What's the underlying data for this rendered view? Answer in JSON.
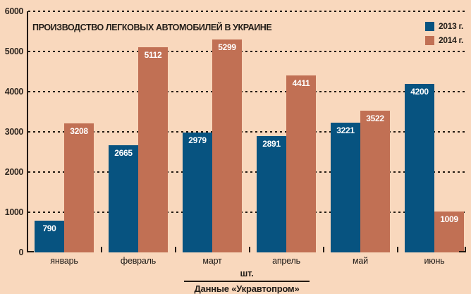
{
  "colors": {
    "background": "#f9d8bd",
    "series_2013": "#075380",
    "series_2014": "#c17054",
    "axis": "#241a12",
    "text": "#221d18",
    "value_label": "#ffffff"
  },
  "chart_data": {
    "type": "bar",
    "title": "ПРОИЗВОДСТВО ЛЕГКОВЫХ АВТОМОБИЛЕЙ В УКРАИНЕ",
    "categories": [
      "январь",
      "февраль",
      "март",
      "апрель",
      "май",
      "июнь"
    ],
    "series": [
      {
        "name": "2013 г.",
        "color_key": "series_2013",
        "values": [
          790,
          2665,
          2979,
          2891,
          3221,
          4200
        ]
      },
      {
        "name": "2014 г.",
        "color_key": "series_2014",
        "values": [
          3208,
          5112,
          5299,
          4411,
          3522,
          1009
        ]
      }
    ],
    "ylim": [
      0,
      6000
    ],
    "yticks": [
      0,
      1000,
      2000,
      3000,
      4000,
      5000,
      6000
    ],
    "grid": "dashed horizontal",
    "legend_position": "top-right",
    "value_labels": "inside-top"
  },
  "footer": {
    "units": "шт.",
    "source": "Данные «Укравтопром»"
  }
}
